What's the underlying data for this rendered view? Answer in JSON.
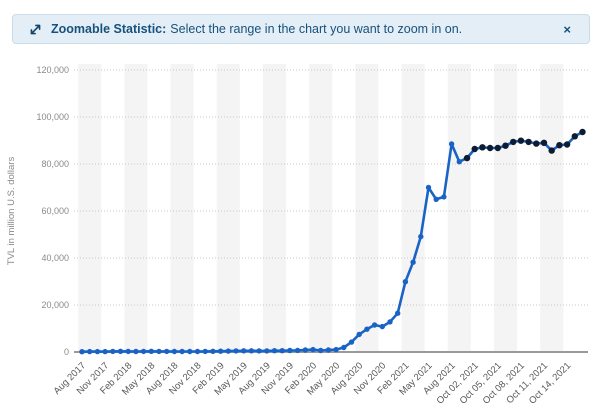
{
  "banner": {
    "icon": "zoom-expand-icon",
    "title": "Zoomable Statistic:",
    "description": "Select the range in the chart you want to zoom in on.",
    "close_label": "×"
  },
  "chart_data": {
    "type": "line",
    "title": "",
    "xlabel": "",
    "ylabel": "TVL in million U.S. dollars",
    "ylim": [
      0,
      120000
    ],
    "ytick_step": 20000,
    "ytick_labels": [
      "0",
      "20,000",
      "40,000",
      "60,000",
      "80,000",
      "100,000",
      "120,000"
    ],
    "grid": "horizontal dotted lines on, alternating vertical plot bands every 3 categories",
    "legend": "none",
    "categories": [
      "Aug 2017",
      "Sep 2017",
      "Oct 2017",
      "Nov 2017",
      "Dec 2017",
      "Jan 2018",
      "Feb 2018",
      "Mar 2018",
      "Apr 2018",
      "May 2018",
      "Jun 2018",
      "Jul 2018",
      "Aug 2018",
      "Sep 2018",
      "Oct 2018",
      "Nov 2018",
      "Dec 2018",
      "Jan 2019",
      "Feb 2019",
      "Mar 2019",
      "Apr 2019",
      "May 2019",
      "Jun 2019",
      "Jul 2019",
      "Aug 2019",
      "Sep 2019",
      "Oct 2019",
      "Nov 2019",
      "Dec 2019",
      "Jan 2020",
      "Feb 2020",
      "Mar 2020",
      "Apr 2020",
      "May 2020",
      "Jun 2020",
      "Jul 2020",
      "Aug 2020",
      "Sep 2020",
      "Oct 2020",
      "Nov 2020",
      "Dec 2020",
      "Jan 2021",
      "Feb 2021",
      "Mar 2021",
      "Apr 2021",
      "May 2021",
      "Jun 2021",
      "Jul 2021",
      "Aug 2021",
      "Sep 2021",
      "Oct 01, 2021",
      "Oct 02, 2021",
      "Oct 03, 2021",
      "Oct 04, 2021",
      "Oct 05, 2021",
      "Oct 06, 2021",
      "Oct 07, 2021",
      "Oct 08, 2021",
      "Oct 09, 2021",
      "Oct 10, 2021",
      "Oct 11, 2021",
      "Oct 12, 2021",
      "Oct 13, 2021",
      "Oct 14, 2021",
      "Oct 15, 2021",
      "Oct 16, 2021"
    ],
    "series": [
      {
        "name": "TVL in million U.S. dollars",
        "values": [
          140,
          150,
          170,
          190,
          240,
          280,
          250,
          230,
          250,
          280,
          260,
          250,
          220,
          200,
          220,
          210,
          270,
          290,
          340,
          390,
          450,
          500,
          520,
          480,
          460,
          540,
          570,
          650,
          680,
          830,
          1000,
          650,
          850,
          1000,
          1900,
          4200,
          7500,
          9700,
          11500,
          10800,
          12800,
          16500,
          29900,
          38200,
          49100,
          70000,
          65000,
          66000,
          88500,
          81000,
          82500,
          86400,
          87100,
          86800,
          86800,
          87800,
          89400,
          89900,
          89400,
          88700,
          89000,
          85700,
          88000,
          88300,
          91800,
          93600
        ]
      }
    ],
    "x_tick_label_indices": [
      0,
      3,
      6,
      9,
      12,
      15,
      18,
      21,
      24,
      27,
      30,
      33,
      36,
      39,
      42,
      45,
      48,
      51,
      54,
      57,
      60,
      63
    ],
    "recent_points_start_index": 50,
    "notes": "monthly points Aug 2017 - Sep 2021 in blue; most recent daily October 2021 points in dark navy"
  },
  "colors": {
    "series_blue": "#1a63c6",
    "recent_point_navy": "#0d1c30",
    "plot_band_gray": "#f4f4f4",
    "gridline_gray": "#c9c9c9",
    "axis_line_gray": "#9a9a9a",
    "x_label_gray": "#595959",
    "y_label_gray": "#8a8a8a",
    "banner_bg": "#e4eef6",
    "banner_border": "#c9dcea",
    "banner_text": "#17527c"
  }
}
